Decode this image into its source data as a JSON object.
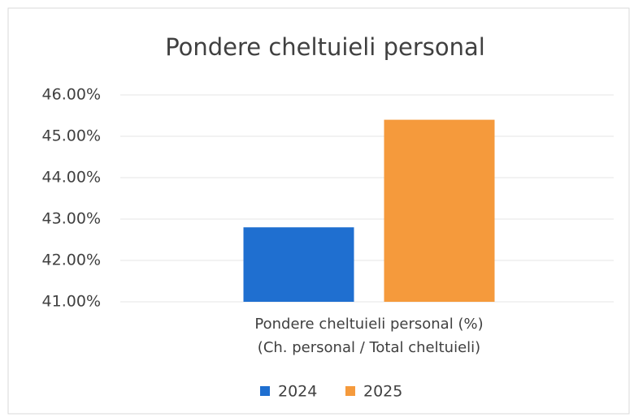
{
  "chart_data": {
    "type": "bar",
    "title": "Pondere cheltuieli personal",
    "categories": [
      "Pondere cheltuieli personal (%)\n(Ch. personal / Total cheltuieli)"
    ],
    "series": [
      {
        "name": "2024",
        "color": "#1f6fd0",
        "values": [
          42.8
        ]
      },
      {
        "name": "2025",
        "color": "#f59a3c",
        "values": [
          45.4
        ]
      }
    ],
    "ylim": [
      41,
      46
    ],
    "yticks": [
      {
        "value": 41,
        "label": "41.00%"
      },
      {
        "value": 42,
        "label": "42.00%"
      },
      {
        "value": 43,
        "label": "43.00%"
      },
      {
        "value": 44,
        "label": "44.00%"
      },
      {
        "value": 45,
        "label": "45.00%"
      },
      {
        "value": 46,
        "label": "46.00%"
      }
    ],
    "grid": true,
    "legend": "bottom"
  }
}
